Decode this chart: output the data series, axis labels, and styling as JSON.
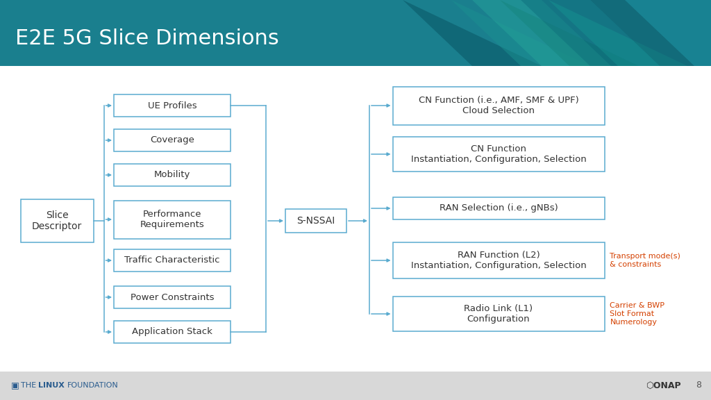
{
  "title": "E2E 5G Slice Dimensions",
  "title_color": "#ffffff",
  "header_color": "#1a7f8e",
  "bg_color": "#ffffff",
  "footer_bg": "#d8d8d8",
  "box_edge_color": "#5aabcf",
  "box_fill_color": "#ffffff",
  "arrow_color": "#5aabcf",
  "text_color": "#333333",
  "red_color": "#d44000",
  "left_items": [
    "UE Profiles",
    "Coverage",
    "Mobility",
    "Performance\nRequirements",
    "Traffic Characteristic",
    "Power Constraints",
    "Application Stack"
  ],
  "root_label": "Slice\nDescriptor",
  "middle_label": "S-NSSAI",
  "right_items": [
    "CN Function (i.e., AMF, SMF & UPF)\nCloud Selection",
    "CN Function\nInstantiation, Configuration, Selection",
    "RAN Selection (i.e., gNBs)",
    "RAN Function (L2)\nInstantiation, Configuration, Selection",
    "Radio Link (L1)\nConfiguration"
  ],
  "right_annotations": [
    "",
    "",
    "",
    "Transport mode(s)\n& constraints",
    "Carrier & BWP\nSlot Format\nNumerology"
  ],
  "title_fontsize": 22,
  "body_fontsize": 9.5
}
